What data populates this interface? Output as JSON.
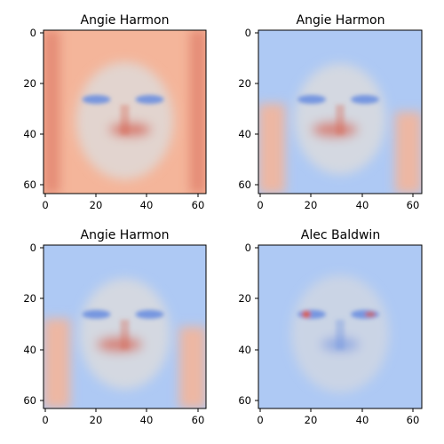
{
  "chart_data": [
    {
      "type": "heatmap",
      "title": "Angie Harmon",
      "colormap": "coolwarm",
      "xlim": [
        0,
        63
      ],
      "ylim": [
        63,
        0
      ],
      "xticks": [
        "0",
        "20",
        "40",
        "60"
      ],
      "yticks": [
        "0",
        "20",
        "40",
        "60"
      ],
      "overall_tone": "warm",
      "shape": [
        64,
        64
      ]
    },
    {
      "type": "heatmap",
      "title": "Angie Harmon",
      "colormap": "coolwarm",
      "xlim": [
        0,
        63
      ],
      "ylim": [
        63,
        0
      ],
      "xticks": [
        "0",
        "20",
        "40",
        "60"
      ],
      "yticks": [
        "0",
        "20",
        "40",
        "60"
      ],
      "overall_tone": "mixed",
      "shape": [
        64,
        64
      ]
    },
    {
      "type": "heatmap",
      "title": "Angie Harmon",
      "colormap": "coolwarm",
      "xlim": [
        0,
        63
      ],
      "ylim": [
        63,
        0
      ],
      "xticks": [
        "0",
        "20",
        "40",
        "60"
      ],
      "yticks": [
        "0",
        "20",
        "40",
        "60"
      ],
      "overall_tone": "mixed",
      "shape": [
        64,
        64
      ]
    },
    {
      "type": "heatmap",
      "title": "Alec Baldwin",
      "colormap": "coolwarm",
      "xlim": [
        0,
        63
      ],
      "ylim": [
        63,
        0
      ],
      "xticks": [
        "0",
        "20",
        "40",
        "60"
      ],
      "yticks": [
        "0",
        "20",
        "40",
        "60"
      ],
      "overall_tone": "cool",
      "shape": [
        64,
        64
      ]
    }
  ],
  "colors": {
    "warm_strong": "#d6604d",
    "warm_light": "#f4b59a",
    "neutral": "#dddcdc",
    "cool_light": "#aec9f4",
    "cool_strong": "#6b8fe0"
  }
}
